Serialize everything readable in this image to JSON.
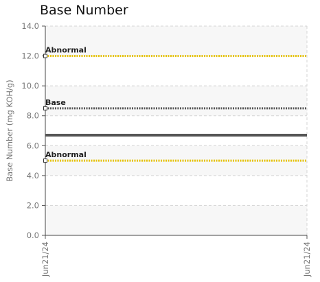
{
  "chart_data": {
    "type": "line",
    "title": "Base Number",
    "ylabel": "Base Number (mg KOH/g)",
    "ylim": [
      0,
      14
    ],
    "yticks": [
      "0.0",
      "2.0",
      "4.0",
      "6.0",
      "8.0",
      "10.0",
      "12.0",
      "14.0"
    ],
    "xticks": [
      "Jun21/24",
      "Jun21/24"
    ],
    "series": [
      {
        "values": [
          6.7,
          6.7
        ],
        "color": "#555555"
      }
    ],
    "reference_lines": [
      {
        "label": "Abnormal",
        "value": 12.0,
        "color": "#e6c200"
      },
      {
        "label": "Base",
        "value": 8.5,
        "color": "#555555"
      },
      {
        "label": "Abnormal",
        "value": 5.0,
        "color": "#e6c200"
      }
    ],
    "grid": true
  }
}
